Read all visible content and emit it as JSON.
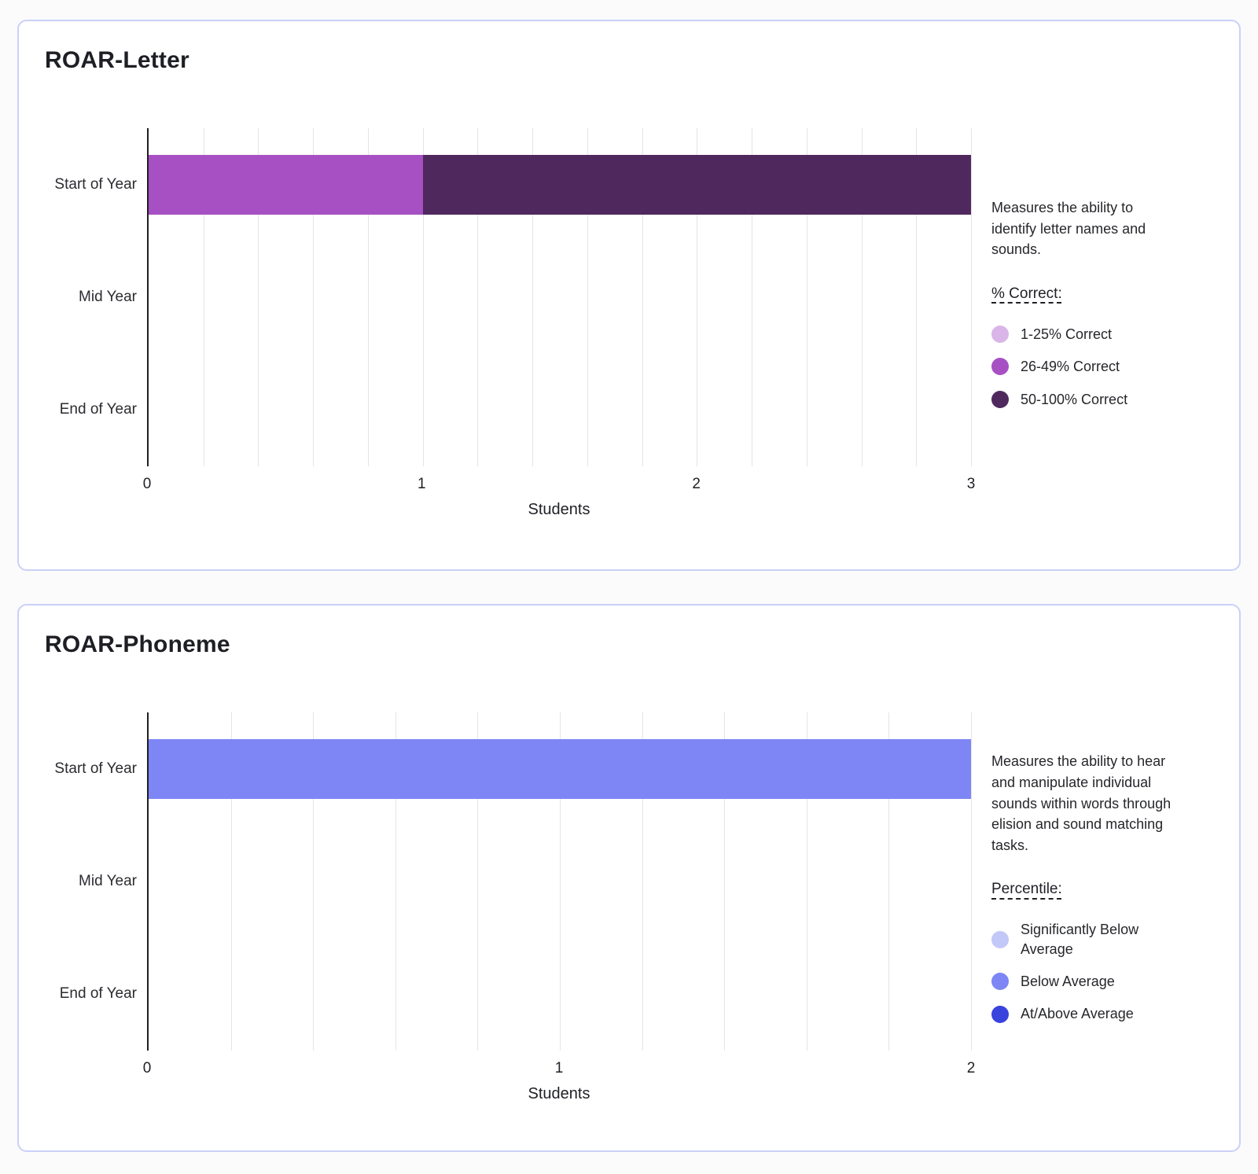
{
  "colors": {
    "card_border": "#CBD0F8",
    "axis_line": "#1F1F1F",
    "gridline": "#E4E4E6",
    "background": "#FBFBFC",
    "text_primary": "#1E1F24"
  },
  "chart_data": [
    {
      "type": "bar",
      "orientation": "horizontal",
      "title": "ROAR-Letter",
      "categories": [
        "Start of Year",
        "Mid Year",
        "End of Year"
      ],
      "series": [
        {
          "name": "1-25% Correct",
          "color": "#D9B5E8",
          "values": [
            0,
            0,
            0
          ]
        },
        {
          "name": "26-49% Correct",
          "color": "#A750C3",
          "values": [
            1,
            0,
            0
          ]
        },
        {
          "name": "50-100% Correct",
          "color": "#4F295E",
          "values": [
            2,
            0,
            0
          ]
        }
      ],
      "xlabel": "Students",
      "xlim": [
        0,
        3
      ],
      "xticks": [
        0,
        1,
        2,
        3
      ],
      "minor_gridlines_per_unit": 5,
      "grid": true,
      "legend_title": "% Correct:",
      "legend_position": "right"
    },
    {
      "type": "bar",
      "orientation": "horizontal",
      "title": "ROAR-Phoneme",
      "categories": [
        "Start of Year",
        "Mid Year",
        "End of Year"
      ],
      "series": [
        {
          "name": "Significantly Below Average",
          "color": "#C2C8F7",
          "values": [
            0,
            0,
            0
          ]
        },
        {
          "name": "Below Average",
          "color": "#7D86F4",
          "values": [
            2,
            0,
            0
          ]
        },
        {
          "name": "At/Above Average",
          "color": "#3A43DC",
          "values": [
            0,
            0,
            0
          ]
        }
      ],
      "xlabel": "Students",
      "xlim": [
        0,
        2
      ],
      "xticks": [
        0,
        1,
        2
      ],
      "minor_gridlines_per_unit": 5,
      "grid": true,
      "legend_title": "Percentile:",
      "legend_position": "right"
    }
  ],
  "cards": [
    {
      "title": "ROAR-Letter",
      "panel": {
        "description": "Measures the ability to identify letter names and sounds.",
        "legend_title": "% Correct:",
        "legend": [
          {
            "label": "1-25% Correct",
            "color": "#D9B5E8"
          },
          {
            "label": "26-49% Correct",
            "color": "#A750C3"
          },
          {
            "label": "50-100% Correct",
            "color": "#4F295E"
          }
        ]
      }
    },
    {
      "title": "ROAR-Phoneme",
      "panel": {
        "description": "Measures the ability to hear and manipulate individual sounds within words through elision and sound matching tasks.",
        "legend_title": "Percentile:",
        "legend": [
          {
            "label": "Significantly Below Average",
            "color": "#C2C8F7"
          },
          {
            "label": "Below Average",
            "color": "#7D86F4"
          },
          {
            "label": "At/Above Average",
            "color": "#3A43DC"
          }
        ]
      }
    }
  ]
}
